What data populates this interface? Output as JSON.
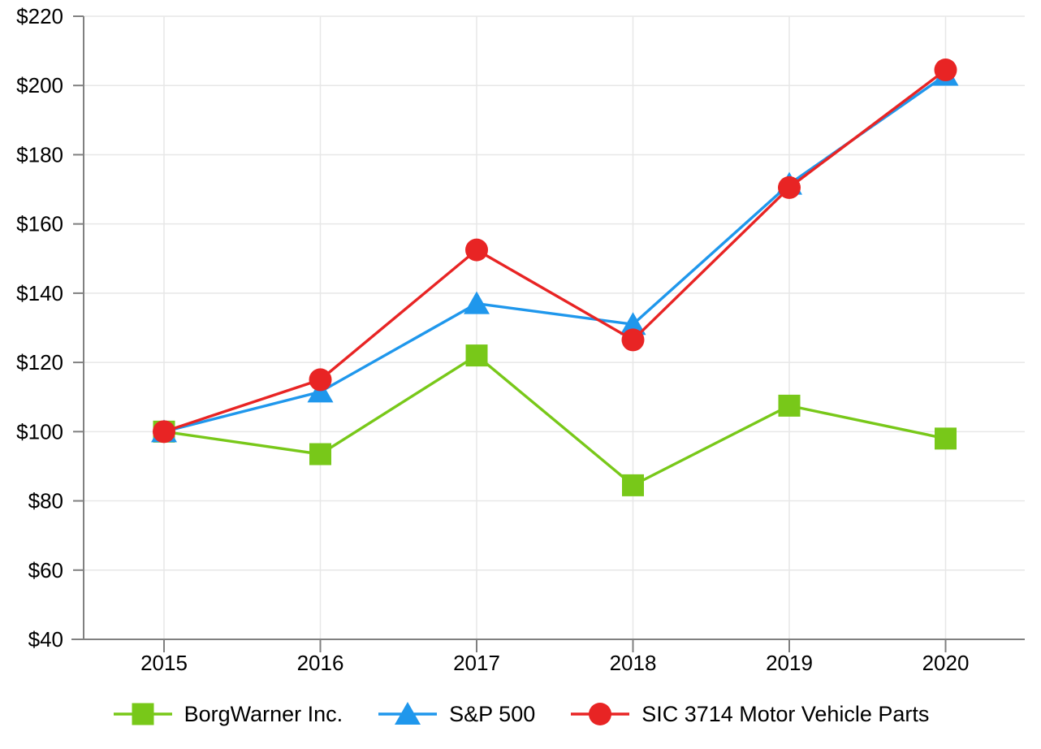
{
  "chart_data": {
    "type": "line",
    "title": "",
    "categories": [
      "2015",
      "2016",
      "2017",
      "2018",
      "2019",
      "2020"
    ],
    "series": [
      {
        "name": "BorgWarner Inc.",
        "marker": "square",
        "color": "#78C819",
        "values": [
          100,
          93.5,
          122,
          84.5,
          107.5,
          98
        ]
      },
      {
        "name": "S&P 500",
        "marker": "triangle",
        "color": "#1F97EC",
        "values": [
          100,
          111.5,
          137,
          131,
          171.5,
          203
        ]
      },
      {
        "name": "SIC 3714 Motor Vehicle Parts",
        "marker": "circle",
        "color": "#E82424",
        "values": [
          100,
          115,
          152.5,
          126.5,
          170.5,
          204.5
        ]
      }
    ],
    "y_axis": {
      "min": 40,
      "max": 220,
      "step": 20,
      "tick_prefix": "$",
      "tick_labels": [
        "$40",
        "$60",
        "$80",
        "$100",
        "$120",
        "$140",
        "$160",
        "$180",
        "$200",
        "$220"
      ]
    },
    "x_axis": {
      "tick_labels": [
        "2015",
        "2016",
        "2017",
        "2018",
        "2019",
        "2020"
      ]
    },
    "grid": true,
    "legend_position": "bottom",
    "colors": {
      "grid": "#E7E7E7",
      "axis": "#808080",
      "text": "#000000",
      "background": "#FFFFFF"
    }
  }
}
